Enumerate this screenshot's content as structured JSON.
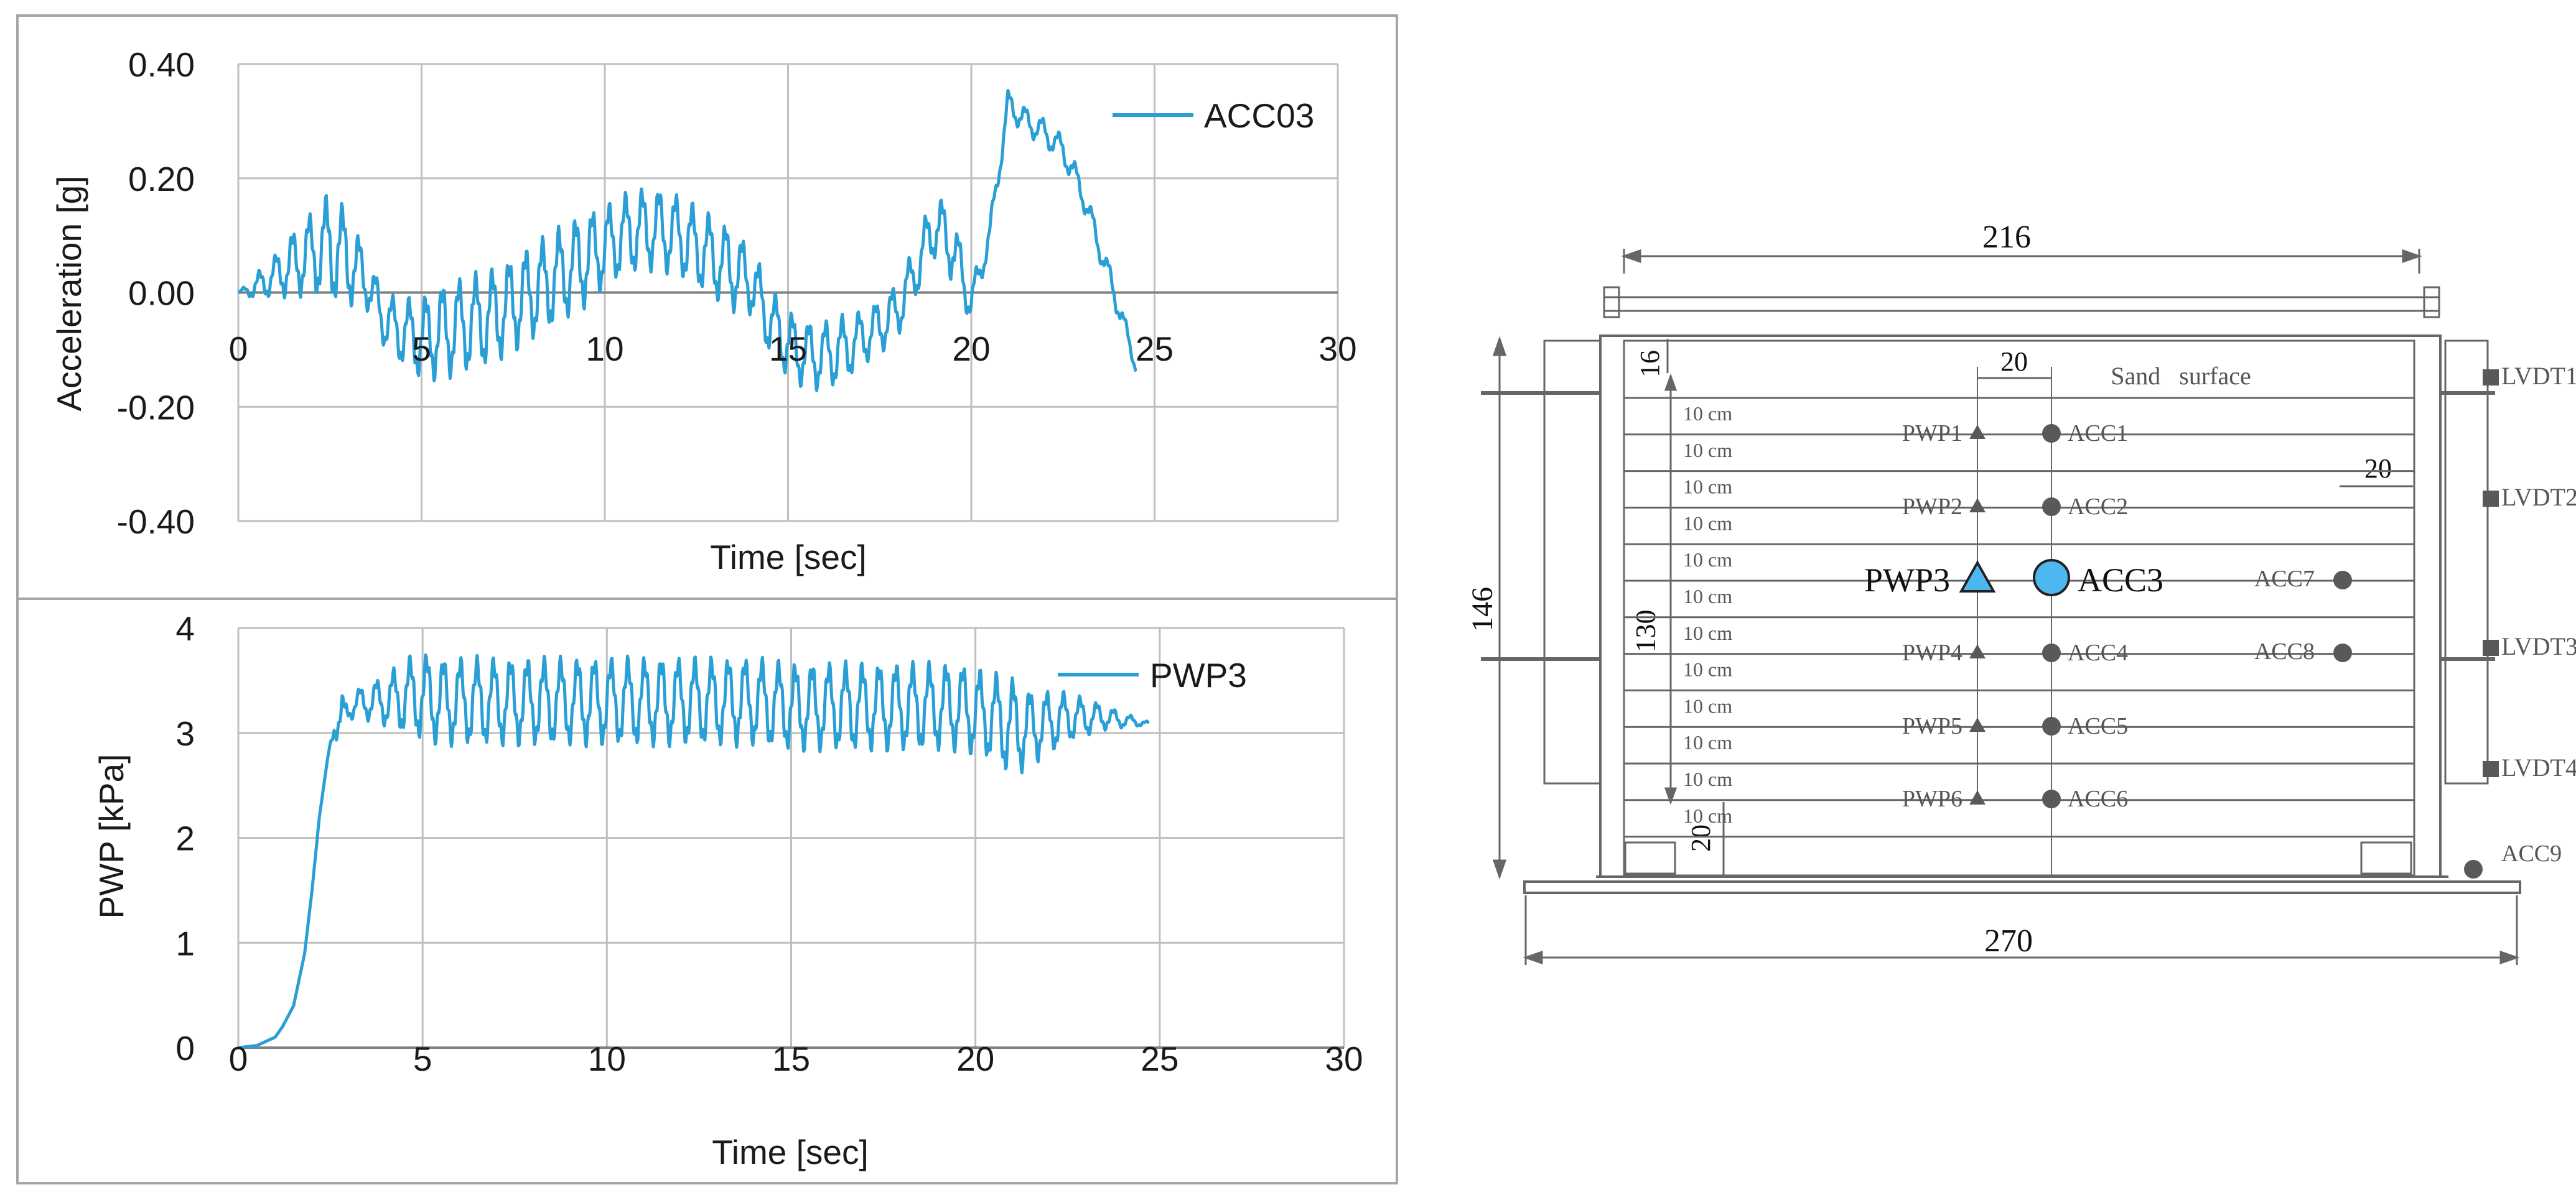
{
  "colors": {
    "series": "#2a9fd6",
    "grid": "#bfbfbf",
    "axis": "#808080",
    "frame": "#a6a6a6",
    "diagram_line": "#666666",
    "highlight": "#4db8ef",
    "marker": "#595959"
  },
  "chart_data": [
    {
      "type": "line",
      "xlabel": "Time [sec]",
      "ylabel": "Acceleration [g]",
      "xlim": [
        0,
        30
      ],
      "ylim": [
        -0.4,
        0.4
      ],
      "xticks": [
        "0",
        "5",
        "10",
        "15",
        "20",
        "25",
        "30"
      ],
      "yticks": [
        "-0.40",
        "-0.20",
        "0.00",
        "0.20",
        "0.40"
      ],
      "grid": true,
      "legend_position": "top-right",
      "series": [
        {
          "name": "ACC03",
          "x": [
            0,
            0.5,
            1,
            1.5,
            2,
            2.5,
            3,
            3.5,
            4,
            4.5,
            5,
            5.5,
            6,
            6.5,
            7,
            7.5,
            8,
            8.5,
            9,
            9.5,
            10,
            10.5,
            11,
            11.5,
            12,
            12.5,
            13,
            13.5,
            14,
            14.5,
            15,
            15.5,
            16,
            16.5,
            17,
            17.5,
            18,
            18.5,
            19,
            19.5,
            20,
            20.5,
            21,
            21.5,
            22,
            22.5,
            23,
            23.5,
            24,
            24.5
          ],
          "y": [
            0,
            0.01,
            0.03,
            0.05,
            0.07,
            0.08,
            0.06,
            0.02,
            -0.05,
            -0.07,
            -0.08,
            -0.07,
            -0.06,
            -0.05,
            -0.04,
            -0.02,
            0,
            0.02,
            0.04,
            0.06,
            0.08,
            0.1,
            0.11,
            0.11,
            0.1,
            0.08,
            0.06,
            0.04,
            0.02,
            -0.05,
            -0.09,
            -0.11,
            -0.11,
            -0.1,
            -0.08,
            -0.06,
            -0.03,
            0.04,
            0.12,
            0.08,
            -0.02,
            0.1,
            0.33,
            0.3,
            0.28,
            0.25,
            0.18,
            0.08,
            -0.02,
            -0.13
          ],
          "amplitude": [
            0,
            0.02,
            0.03,
            0.05,
            0.06,
            0.08,
            0.07,
            0.04,
            0.04,
            0.05,
            0.06,
            0.07,
            0.07,
            0.07,
            0.07,
            0.07,
            0.07,
            0.07,
            0.07,
            0.07,
            0.06,
            0.06,
            0.06,
            0.06,
            0.06,
            0.06,
            0.06,
            0.06,
            0.05,
            0.05,
            0.05,
            0.05,
            0.05,
            0.05,
            0.04,
            0.04,
            0.04,
            0.04,
            0.05,
            0.05,
            0.03,
            0.02,
            0.02,
            0.02,
            0.02,
            0.02,
            0.02,
            0.02,
            0.02,
            0.01
          ]
        }
      ]
    },
    {
      "type": "line",
      "xlabel": "Time [sec]",
      "ylabel": "PWP [kPa]",
      "xlim": [
        0,
        30
      ],
      "ylim": [
        0,
        4
      ],
      "xticks": [
        "0",
        "5",
        "10",
        "15",
        "20",
        "25",
        "30"
      ],
      "yticks": [
        "0",
        "1",
        "2",
        "3",
        "4"
      ],
      "grid": true,
      "legend_position": "top-right",
      "series": [
        {
          "name": "PWP3",
          "x": [
            0,
            0.5,
            1,
            1.2,
            1.5,
            1.8,
            2,
            2.2,
            2.4,
            2.6,
            2.8,
            3,
            3.5,
            4,
            4.5,
            5,
            5.5,
            6,
            7,
            8,
            9,
            10,
            11,
            12,
            13,
            14,
            15,
            16,
            17,
            18,
            19,
            19.5,
            20,
            20.5,
            21,
            21.5,
            22,
            22.5,
            23,
            23.5,
            24,
            24.5,
            24.7
          ],
          "y": [
            0,
            0.02,
            0.1,
            0.2,
            0.4,
            0.9,
            1.5,
            2.2,
            2.7,
            3.1,
            3.05,
            3.25,
            3.3,
            3.3,
            3.35,
            3.35,
            3.3,
            3.3,
            3.3,
            3.3,
            3.3,
            3.3,
            3.3,
            3.3,
            3.3,
            3.3,
            3.25,
            3.25,
            3.25,
            3.25,
            3.25,
            3.25,
            3.2,
            3.15,
            3.05,
            3.05,
            3.1,
            3.15,
            3.15,
            3.15,
            3.12,
            3.1,
            3.08
          ],
          "amplitude": [
            0,
            0,
            0,
            0,
            0,
            0,
            0,
            0,
            0,
            0.1,
            0.25,
            0.1,
            0.15,
            0.2,
            0.3,
            0.35,
            0.35,
            0.35,
            0.35,
            0.35,
            0.35,
            0.35,
            0.35,
            0.35,
            0.35,
            0.35,
            0.35,
            0.35,
            0.35,
            0.35,
            0.35,
            0.35,
            0.35,
            0.35,
            0.4,
            0.3,
            0.25,
            0.2,
            0.15,
            0.1,
            0.06,
            0.03,
            0.02
          ]
        }
      ]
    }
  ],
  "diagram": {
    "dims": {
      "top_width": "216",
      "base_width": "270",
      "total_height": "146",
      "inner_height": "130",
      "sensor_spacing": "20",
      "top_offset": "16",
      "right_offset": "20",
      "bottom_offset": "20"
    },
    "surface_label": "Sand   surface",
    "layer_label": "10 cm",
    "pwp_sensors": [
      "PWP1",
      "PWP2",
      "PWP3",
      "PWP4",
      "PWP5",
      "PWP6"
    ],
    "acc_sensors": [
      "ACC1",
      "ACC2",
      "ACC3",
      "ACC4",
      "ACC5",
      "ACC6"
    ],
    "extra_acc": [
      "ACC7",
      "ACC8"
    ],
    "base_acc": "ACC9",
    "lvdts": [
      "LVDT1",
      "LVDT2",
      "LVDT3",
      "LVDT4"
    ]
  }
}
